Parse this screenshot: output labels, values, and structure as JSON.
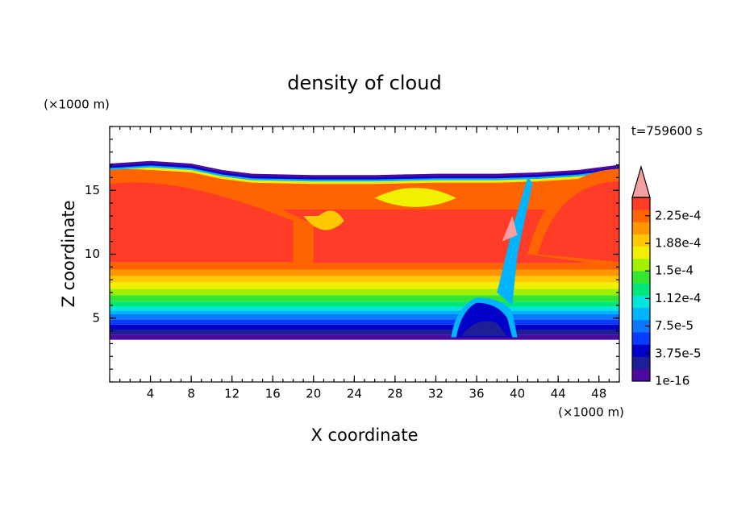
{
  "chart_data": {
    "type": "contour",
    "title": "density of cloud",
    "x_label": "X coordinate",
    "y_label": "Z coordinate",
    "x_unit": "(×1000 m)",
    "y_unit": "(×1000 m)",
    "annotation": "t=759600 s",
    "xlim": [
      0,
      50
    ],
    "xticks": [
      4,
      8,
      12,
      16,
      20,
      24,
      28,
      32,
      36,
      40,
      44,
      48
    ],
    "ylim": [
      0,
      20
    ],
    "yticks": [
      5,
      10,
      15
    ],
    "colorbar": {
      "lim": [
        0,
        0.00025
      ],
      "ticks": [
        1e-16,
        {
          "value": 3.75e-05,
          "label": "3.75e-5"
        },
        {
          "value": 7.5e-05,
          "label": "7.5e-5"
        },
        {
          "value": 0.0001125,
          "label": "1.12e-4"
        },
        {
          "value": 0.00015,
          "label": "1.5e-4"
        },
        {
          "value": 0.0001875,
          "label": "1.88e-4"
        },
        {
          "value": 0.000225,
          "label": "2.25e-4"
        }
      ],
      "colors": [
        "#4b0aa0",
        "#1e1e96",
        "#0000c8",
        "#0a3cff",
        "#0a78ff",
        "#00b4ff",
        "#00e6dc",
        "#00e678",
        "#32e632",
        "#a0f000",
        "#f0f000",
        "#ffc800",
        "#ff9600",
        "#ff6400",
        "#ff3c28"
      ],
      "extend_color": "#f4a0a0"
    }
  }
}
